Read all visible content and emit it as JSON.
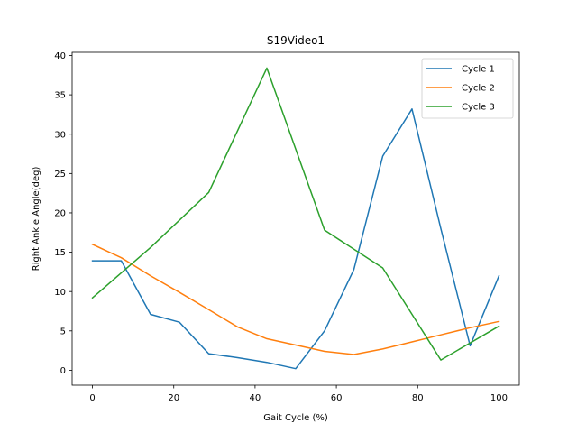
{
  "chart_data": {
    "type": "line",
    "title": "S19Video1",
    "xlabel": "Gait Cycle (%)",
    "ylabel": "Right Ankle Angle(deg)",
    "xlim": [
      -5,
      105
    ],
    "ylim": [
      -1.9,
      40.4
    ],
    "xticks": [
      0,
      20,
      40,
      60,
      80,
      100
    ],
    "yticks": [
      0,
      5,
      10,
      15,
      20,
      25,
      30,
      35,
      40
    ],
    "grid": false,
    "legend_position": "top-right",
    "series": [
      {
        "name": "Cycle 1",
        "color": "#1f77b4",
        "x": [
          0,
          7.1,
          14.3,
          21.4,
          28.6,
          35.7,
          42.9,
          50.0,
          57.1,
          64.3,
          71.4,
          78.6,
          85.7,
          92.9,
          100
        ],
        "y": [
          13.9,
          13.9,
          7.1,
          6.1,
          2.1,
          1.6,
          1.0,
          0.2,
          5.0,
          12.8,
          27.2,
          33.2,
          18.0,
          3.1,
          12.0
        ]
      },
      {
        "name": "Cycle 2",
        "color": "#ff7f0e",
        "x": [
          0,
          7.1,
          14.3,
          21.4,
          28.6,
          35.7,
          42.9,
          50.0,
          57.1,
          64.3,
          71.4,
          78.6,
          85.7,
          92.9,
          100
        ],
        "y": [
          16.0,
          14.3,
          12.0,
          9.9,
          7.7,
          5.5,
          4.0,
          3.2,
          2.4,
          2.0,
          2.7,
          3.6,
          4.5,
          5.4,
          6.2
        ]
      },
      {
        "name": "Cycle 3",
        "color": "#2ca02c",
        "x": [
          0,
          14.3,
          28.6,
          42.9,
          57.1,
          71.4,
          85.7,
          100
        ],
        "y": [
          9.2,
          15.6,
          22.6,
          38.4,
          17.8,
          13.0,
          1.3,
          5.6
        ]
      }
    ]
  }
}
